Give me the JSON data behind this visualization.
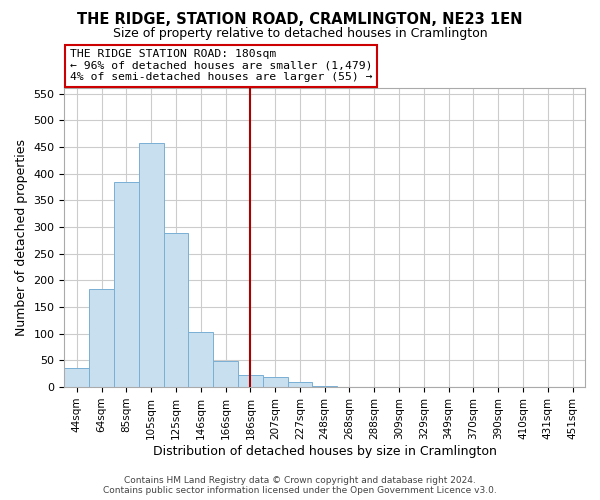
{
  "title": "THE RIDGE, STATION ROAD, CRAMLINGTON, NE23 1EN",
  "subtitle": "Size of property relative to detached houses in Cramlington",
  "xlabel": "Distribution of detached houses by size in Cramlington",
  "ylabel": "Number of detached properties",
  "bar_color": "#c8dff0",
  "bar_edge_color": "#7aafd4",
  "vline_color": "#aa0000",
  "vline_x": 7,
  "bin_labels": [
    "44sqm",
    "64sqm",
    "85sqm",
    "105sqm",
    "125sqm",
    "146sqm",
    "166sqm",
    "186sqm",
    "207sqm",
    "227sqm",
    "248sqm",
    "268sqm",
    "288sqm",
    "309sqm",
    "329sqm",
    "349sqm",
    "370sqm",
    "390sqm",
    "410sqm",
    "431sqm",
    "451sqm"
  ],
  "bar_heights": [
    35,
    183,
    385,
    457,
    288,
    104,
    49,
    23,
    18,
    10,
    2,
    1,
    0,
    0,
    0,
    0,
    0,
    0,
    0,
    0,
    0
  ],
  "ylim": [
    0,
    560
  ],
  "yticks": [
    0,
    50,
    100,
    150,
    200,
    250,
    300,
    350,
    400,
    450,
    500,
    550
  ],
  "annotation_title": "THE RIDGE STATION ROAD: 180sqm",
  "annotation_line1": "← 96% of detached houses are smaller (1,479)",
  "annotation_line2": "4% of semi-detached houses are larger (55) →",
  "footer_line1": "Contains HM Land Registry data © Crown copyright and database right 2024.",
  "footer_line2": "Contains public sector information licensed under the Open Government Licence v3.0.",
  "background_color": "#ffffff",
  "grid_color": "#cccccc"
}
